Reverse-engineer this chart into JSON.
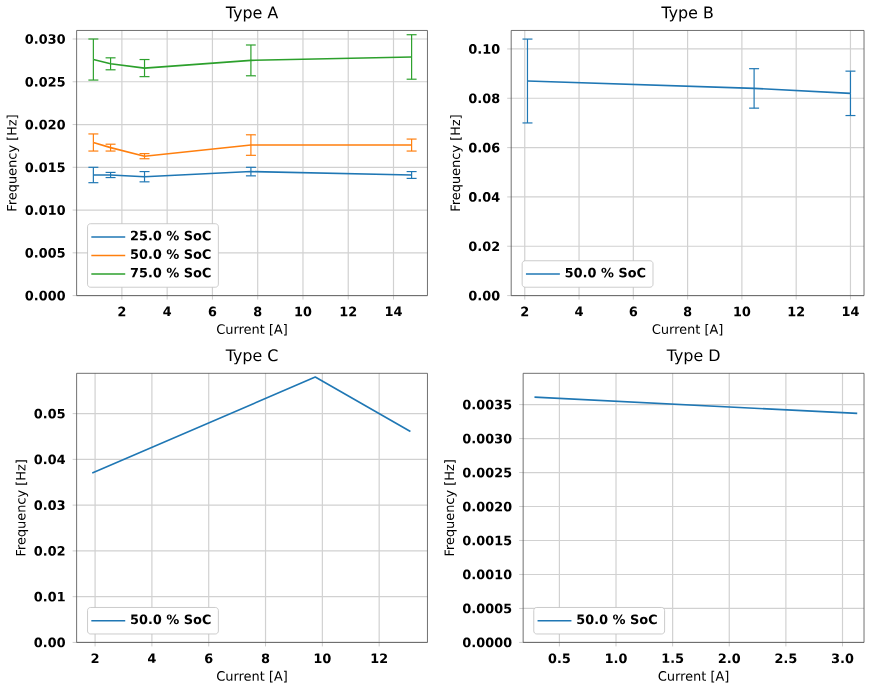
{
  "chart_data": [
    {
      "type": "line",
      "title": "Type A",
      "xlabel": "Current [A]",
      "ylabel": "Frequency [Hz]",
      "x": [
        0.74,
        1.5,
        3,
        7.7,
        14.8
      ],
      "series": [
        {
          "name": "25.0 % SoC",
          "color": "#1f77b4",
          "values": [
            0.0141,
            0.0141,
            0.0139,
            0.0145,
            0.0141
          ],
          "errors": [
            0.0009,
            0.0003,
            0.0006,
            0.0005,
            0.0004
          ]
        },
        {
          "name": "50.0 % SoC",
          "color": "#ff7f0e",
          "values": [
            0.0179,
            0.0173,
            0.0163,
            0.0176,
            0.0176
          ],
          "errors": [
            0.001,
            0.0004,
            0.0003,
            0.0012,
            0.0007
          ]
        },
        {
          "name": "75.0 % SoC",
          "color": "#2ca02c",
          "values": [
            0.0276,
            0.0271,
            0.0266,
            0.0275,
            0.0279
          ],
          "errors": [
            0.0024,
            0.0007,
            0.001,
            0.0018,
            0.0026
          ]
        }
      ],
      "xlim": [
        0,
        15.5
      ],
      "ylim": [
        0,
        0.031
      ],
      "xticks": [
        2,
        4,
        6,
        8,
        10,
        12,
        14
      ],
      "yticks": [
        {
          "value": 0,
          "label": "0.000"
        },
        {
          "value": 0.005,
          "label": "0.005"
        },
        {
          "value": 0.01,
          "label": "0.010"
        },
        {
          "value": 0.015,
          "label": "0.015"
        },
        {
          "value": 0.02,
          "label": "0.020"
        },
        {
          "value": 0.025,
          "label": "0.025"
        },
        {
          "value": 0.03,
          "label": "0.030"
        }
      ],
      "grid": true,
      "legend": "bottom left"
    },
    {
      "type": "line",
      "title": "Type B",
      "xlabel": "Current [A]",
      "ylabel": "Frequency [Hz]",
      "x": [
        2.1,
        10.45,
        14
      ],
      "series": [
        {
          "name": "50.0 % SoC",
          "color": "#1f77b4",
          "values": [
            0.087,
            0.084,
            0.082
          ],
          "errors": [
            0.017,
            0.008,
            0.009
          ]
        }
      ],
      "xlim": [
        1.5,
        14.5
      ],
      "ylim": [
        0,
        0.1075
      ],
      "xticks": [
        2,
        4,
        6,
        8,
        10,
        12,
        14
      ],
      "yticks": [
        {
          "value": 0,
          "label": "0.00"
        },
        {
          "value": 0.02,
          "label": "0.02"
        },
        {
          "value": 0.04,
          "label": "0.04"
        },
        {
          "value": 0.06,
          "label": "0.06"
        },
        {
          "value": 0.08,
          "label": "0.08"
        },
        {
          "value": 0.1,
          "label": "0.10"
        }
      ],
      "grid": true,
      "legend": "bottom left"
    },
    {
      "type": "line",
      "title": "Type C",
      "xlabel": "Current [A]",
      "ylabel": "Frequency [Hz]",
      "x": [
        1.9,
        9.75,
        13.1
      ],
      "series": [
        {
          "name": "50.0 % SoC",
          "color": "#1f77b4",
          "values": [
            0.037,
            0.058,
            0.0461
          ]
        }
      ],
      "xlim": [
        1.35,
        13.7
      ],
      "ylim": [
        0,
        0.0588
      ],
      "xticks": [
        2,
        4,
        6,
        8,
        10,
        12
      ],
      "yticks": [
        {
          "value": 0,
          "label": "0.00"
        },
        {
          "value": 0.01,
          "label": "0.01"
        },
        {
          "value": 0.02,
          "label": "0.02"
        },
        {
          "value": 0.03,
          "label": "0.03"
        },
        {
          "value": 0.04,
          "label": "0.04"
        },
        {
          "value": 0.05,
          "label": "0.05"
        }
      ],
      "grid": true,
      "legend": "bottom left"
    },
    {
      "type": "line",
      "title": "Type D",
      "xlabel": "Current [A]",
      "ylabel": "Frequency [Hz]",
      "x": [
        0.28,
        3.13
      ],
      "series": [
        {
          "name": "50.0 % SoC",
          "color": "#1f77b4",
          "values": [
            0.00361,
            0.00337
          ]
        }
      ],
      "xlim": [
        0.18,
        3.19
      ],
      "ylim": [
        0,
        0.00396
      ],
      "xticks": [
        0.5,
        {
          "value": 1,
          "label": "1.0"
        },
        1.5,
        {
          "value": 2,
          "label": "2.0"
        },
        2.5,
        {
          "value": 3,
          "label": "3.0"
        }
      ],
      "yticks": [
        {
          "value": 0,
          "label": "0.0000"
        },
        {
          "value": 0.0005,
          "label": "0.0005"
        },
        {
          "value": 0.001,
          "label": "0.0010"
        },
        {
          "value": 0.0015,
          "label": "0.0015"
        },
        {
          "value": 0.002,
          "label": "0.0020"
        },
        {
          "value": 0.0025,
          "label": "0.0025"
        },
        {
          "value": 0.003,
          "label": "0.0030"
        },
        {
          "value": 0.0035,
          "label": "0.0035"
        }
      ],
      "grid": true,
      "legend": "bottom left"
    }
  ]
}
